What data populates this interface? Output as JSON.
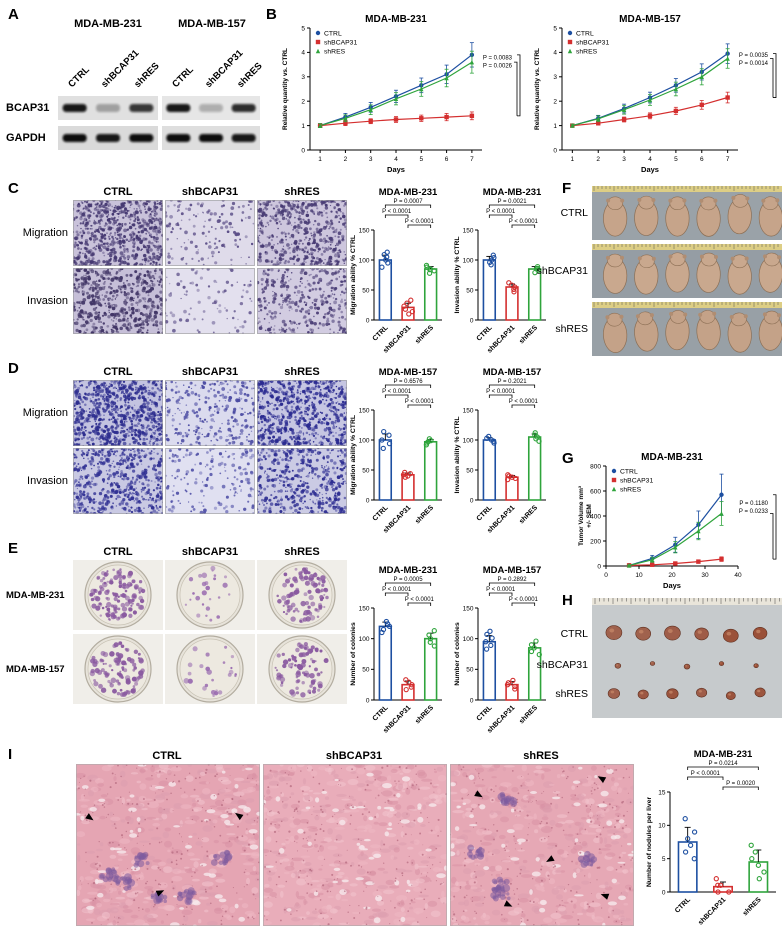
{
  "letters": {
    "A": "A",
    "B": "B",
    "C": "C",
    "D": "D",
    "E": "E",
    "F": "F",
    "G": "G",
    "H": "H",
    "I": "I"
  },
  "colors": {
    "ctrl": "#1d4fa1",
    "shbcap31": "#d42f2f",
    "shres": "#2fa43c"
  },
  "panel_a": {
    "group_headers": [
      "MDA-MB-231",
      "MDA-MB-157"
    ],
    "lanes": [
      "CTRL",
      "shBCAP31",
      "shRES"
    ],
    "band_labels": [
      "BCAP31",
      "GAPDH"
    ]
  },
  "panel_c": {
    "col_headers": [
      "CTRL",
      "shBCAP31",
      "shRES"
    ],
    "row_labels": [
      "Migration",
      "Invasion"
    ]
  },
  "panel_d": {
    "col_headers": [
      "CTRL",
      "shBCAP31",
      "shRES"
    ],
    "row_labels": [
      "Migration",
      "Invasion"
    ]
  },
  "panel_e": {
    "col_headers": [
      "CTRL",
      "shBCAP31",
      "shRES"
    ],
    "row_labels": [
      "MDA-MB-231",
      "MDA-MB-157"
    ]
  },
  "panel_f": {
    "labels": [
      "CTRL",
      "shBCAP31",
      "shRES"
    ]
  },
  "panel_h": {
    "labels": [
      "CTRL",
      "shBCAP31",
      "shRES"
    ]
  },
  "panel_i": {
    "col_headers": [
      "CTRL",
      "shBCAP31",
      "shRES"
    ]
  },
  "images": {
    "a_bcap31_1": {
      "kind": "blot",
      "bg": "#e0e0e0",
      "bands": [
        0.95,
        0.3,
        0.8
      ]
    },
    "a_bcap31_2": {
      "kind": "blot",
      "bg": "#e6e6e6",
      "bands": [
        0.95,
        0.25,
        0.85
      ]
    },
    "a_gapdh_1": {
      "kind": "blot",
      "bg": "#dadada",
      "bands": [
        1,
        0.95,
        1
      ]
    },
    "a_gapdh_2": {
      "kind": "blot",
      "bg": "#dedede",
      "bands": [
        1,
        1,
        0.95
      ]
    },
    "c_mig_ctrl": {
      "kind": "dots",
      "seed": 11,
      "bg": "#c9c2da",
      "dot": "#453871",
      "count": 700,
      "rmin": 0.6,
      "rmax": 1.9
    },
    "c_mig_sh": {
      "kind": "dots",
      "seed": 12,
      "bg": "#dfdbea",
      "dot": "#5c4f88",
      "count": 140,
      "rmin": 0.6,
      "rmax": 1.9
    },
    "c_mig_res": {
      "kind": "dots",
      "seed": 13,
      "bg": "#cdc6dd",
      "dot": "#483b74",
      "count": 520,
      "rmin": 0.6,
      "rmax": 1.9
    },
    "c_inv_ctrl": {
      "kind": "dots",
      "seed": 14,
      "bg": "#c6bfd8",
      "dot": "#413566",
      "count": 520,
      "rmin": 0.6,
      "rmax": 2.0
    },
    "c_inv_sh": {
      "kind": "dots",
      "seed": 15,
      "bg": "#e3e0ee",
      "dot": "#6a5e93",
      "count": 90,
      "rmin": 0.6,
      "rmax": 1.9
    },
    "c_inv_res": {
      "kind": "dots",
      "seed": 16,
      "bg": "#d2cce1",
      "dot": "#4d4078",
      "count": 330,
      "rmin": 0.6,
      "rmax": 1.9
    },
    "d_mig_ctrl": {
      "kind": "dots",
      "seed": 21,
      "bg": "#c3c3e0",
      "dot": "#2c2c8e",
      "count": 750,
      "rmin": 0.6,
      "rmax": 1.9
    },
    "d_mig_sh": {
      "kind": "dots",
      "seed": 22,
      "bg": "#dbdbee",
      "dot": "#4a4aa2",
      "count": 280,
      "rmin": 0.6,
      "rmax": 1.9
    },
    "d_mig_res": {
      "kind": "dots",
      "seed": 23,
      "bg": "#c6c6e2",
      "dot": "#2a2a90",
      "count": 680,
      "rmin": 0.6,
      "rmax": 1.9
    },
    "d_inv_ctrl": {
      "kind": "dots",
      "seed": 24,
      "bg": "#c9c9e3",
      "dot": "#323294",
      "count": 540,
      "rmin": 0.6,
      "rmax": 1.9
    },
    "d_inv_sh": {
      "kind": "dots",
      "seed": 25,
      "bg": "#e0e0f1",
      "dot": "#5656aa",
      "count": 160,
      "rmin": 0.6,
      "rmax": 1.9
    },
    "d_inv_res": {
      "kind": "dots",
      "seed": 26,
      "bg": "#cbcbe4",
      "dot": "#2e2e92",
      "count": 430,
      "rmin": 0.6,
      "rmax": 1.9
    },
    "e_231_ctrl": {
      "kind": "plate",
      "seed": 31,
      "count": 130,
      "dot": "#8a5aa0"
    },
    "e_231_sh": {
      "kind": "plate",
      "seed": 32,
      "count": 26,
      "dot": "#9a6cb0"
    },
    "e_231_res": {
      "kind": "plate",
      "seed": 33,
      "count": 100,
      "dot": "#8a5aa0"
    },
    "e_157_ctrl": {
      "kind": "plate",
      "seed": 34,
      "count": 100,
      "dot": "#8a5aa0"
    },
    "e_157_sh": {
      "kind": "plate",
      "seed": 35,
      "count": 25,
      "dot": "#9a6cb0"
    },
    "e_157_res": {
      "kind": "plate",
      "seed": 36,
      "count": 85,
      "dot": "#8a5aa0"
    },
    "f_ctrl": {
      "kind": "mice",
      "seed": 41,
      "count": 6,
      "bg": "#9aa2a8",
      "body": "#c6a48a"
    },
    "f_sh": {
      "kind": "mice",
      "seed": 42,
      "count": 6,
      "bg": "#959da4",
      "body": "#c9a88e"
    },
    "f_res": {
      "kind": "mice",
      "seed": 43,
      "count": 6,
      "bg": "#98a0a6",
      "body": "#c4a288"
    },
    "h_tumors": {
      "kind": "tumors",
      "seed": 51,
      "color": "#9a5038",
      "rows": [
        {
          "y": 0.3,
          "sizes": [
            7,
            6.5,
            7,
            6,
            6.5,
            6
          ]
        },
        {
          "y": 0.56,
          "sizes": [
            2.5,
            2,
            2.5,
            2,
            2
          ]
        },
        {
          "y": 0.8,
          "sizes": [
            5,
            4.5,
            5,
            4.5,
            4,
            4.5
          ]
        }
      ]
    },
    "i_ctrl": {
      "kind": "histo",
      "seed": 61,
      "bg": "#e5a5b3",
      "patches": 6,
      "arrows": [
        [
          0.06,
          0.32,
          35
        ],
        [
          0.44,
          0.8,
          -25
        ],
        [
          0.9,
          0.33,
          215
        ]
      ]
    },
    "i_sh": {
      "kind": "histo",
      "seed": 62,
      "bg": "#e9adba",
      "patches": 0,
      "arrows": []
    },
    "i_res": {
      "kind": "histo",
      "seed": 63,
      "bg": "#e6a8b5",
      "patches": 5,
      "arrows": [
        [
          0.14,
          0.18,
          30
        ],
        [
          0.84,
          0.1,
          210
        ],
        [
          0.56,
          0.58,
          150
        ],
        [
          0.3,
          0.86,
          25
        ],
        [
          0.86,
          0.82,
          200
        ]
      ]
    }
  },
  "chart_data": [
    {
      "id": "b231",
      "type": "line",
      "title": "MDA-MB-231",
      "xlabel": "Days",
      "ylabel": "Relative quantity vs. CTRL",
      "x": [
        1,
        2,
        3,
        4,
        5,
        6,
        7
      ],
      "xlim": [
        0.6,
        7.4
      ],
      "xticks": [
        1,
        2,
        3,
        4,
        5,
        6,
        7
      ],
      "ylim": [
        0,
        5
      ],
      "yticks": [
        0,
        1,
        2,
        3,
        4,
        5
      ],
      "series": [
        {
          "name": "CTRL",
          "color": "ctrl",
          "marker": "circle",
          "values": [
            1.0,
            1.35,
            1.75,
            2.2,
            2.65,
            3.1,
            3.9
          ],
          "err": [
            0.08,
            0.15,
            0.2,
            0.25,
            0.3,
            0.38,
            0.5
          ]
        },
        {
          "name": "shBCAP31",
          "color": "shbcap31",
          "marker": "square",
          "values": [
            1.0,
            1.1,
            1.18,
            1.25,
            1.3,
            1.35,
            1.4
          ],
          "err": [
            0.08,
            0.1,
            0.1,
            0.12,
            0.13,
            0.15,
            0.16
          ]
        },
        {
          "name": "shRES",
          "color": "shres",
          "marker": "triangle",
          "values": [
            1.0,
            1.3,
            1.65,
            2.1,
            2.5,
            2.95,
            3.6
          ],
          "err": [
            0.08,
            0.14,
            0.2,
            0.25,
            0.3,
            0.36,
            0.45
          ]
        }
      ],
      "p_values": [
        "P = 0.0083",
        "P = 0.0026"
      ]
    },
    {
      "id": "b157",
      "type": "line",
      "title": "MDA-MB-157",
      "xlabel": "Days",
      "ylabel": "Relative quantity vs. CTRL",
      "x": [
        1,
        2,
        3,
        4,
        5,
        6,
        7
      ],
      "xlim": [
        0.6,
        7.4
      ],
      "xticks": [
        1,
        2,
        3,
        4,
        5,
        6,
        7
      ],
      "ylim": [
        0,
        5
      ],
      "yticks": [
        0,
        1,
        2,
        3,
        4,
        5
      ],
      "series": [
        {
          "name": "CTRL",
          "color": "ctrl",
          "marker": "circle",
          "values": [
            1.0,
            1.3,
            1.7,
            2.15,
            2.65,
            3.2,
            3.95
          ],
          "err": [
            0.06,
            0.12,
            0.18,
            0.22,
            0.28,
            0.33,
            0.4
          ]
        },
        {
          "name": "shBCAP31",
          "color": "shbcap31",
          "marker": "square",
          "values": [
            1.0,
            1.1,
            1.25,
            1.4,
            1.6,
            1.85,
            2.15
          ],
          "err": [
            0.06,
            0.08,
            0.1,
            0.12,
            0.15,
            0.18,
            0.22
          ]
        },
        {
          "name": "shRES",
          "color": "shres",
          "marker": "triangle",
          "values": [
            1.0,
            1.28,
            1.65,
            2.05,
            2.5,
            3.0,
            3.75
          ],
          "err": [
            0.06,
            0.12,
            0.18,
            0.22,
            0.28,
            0.33,
            0.4
          ]
        }
      ],
      "p_values": [
        "P = 0.0035",
        "P = 0.0014"
      ]
    },
    {
      "id": "cmig",
      "type": "bar",
      "seed": 101,
      "title": "MDA-MB-231",
      "ylabel": "Migration ability % CTRL",
      "ylim": [
        0,
        150
      ],
      "yticks": [
        0,
        50,
        100,
        150
      ],
      "categories": [
        "CTRL",
        "shBCAP31",
        "shRES"
      ],
      "colors": [
        "ctrl",
        "shbcap31",
        "shres"
      ],
      "values": [
        100,
        21,
        85
      ],
      "errors": [
        8,
        7,
        4
      ],
      "points": [
        [
          88,
          95,
          100,
          105,
          109,
          113
        ],
        [
          10,
          14,
          18,
          23,
          28,
          33
        ],
        [
          78,
          82,
          85,
          88,
          91,
          84
        ]
      ],
      "p_top": "P = 0.0007",
      "p_left": "P < 0.0001",
      "p_right": "P < 0.0001"
    },
    {
      "id": "cinv",
      "type": "bar",
      "seed": 102,
      "title": "MDA-MB-231",
      "ylabel": "Invasion ability % CTRL",
      "ylim": [
        0,
        150
      ],
      "yticks": [
        0,
        50,
        100,
        150
      ],
      "categories": [
        "CTRL",
        "shBCAP31",
        "shRES"
      ],
      "colors": [
        "ctrl",
        "shbcap31",
        "shres"
      ],
      "values": [
        100,
        55,
        85
      ],
      "errors": [
        6,
        5,
        4
      ],
      "points": [
        [
          92,
          96,
          100,
          104,
          108
        ],
        [
          47,
          51,
          55,
          58,
          62
        ],
        [
          79,
          83,
          86,
          89,
          85
        ]
      ],
      "p_top": "P = 0.0021",
      "p_left": "P < 0.0001",
      "p_right": "P < 0.0001"
    },
    {
      "id": "dmig",
      "type": "bar",
      "seed": 103,
      "title": "MDA-MB-157",
      "ylabel": "Migration ability % CTRL",
      "ylim": [
        0,
        150
      ],
      "yticks": [
        0,
        50,
        100,
        150
      ],
      "categories": [
        "CTRL",
        "shBCAP31",
        "shRES"
      ],
      "colors": [
        "ctrl",
        "shbcap31",
        "shres"
      ],
      "values": [
        100,
        42,
        97
      ],
      "errors": [
        10,
        3,
        4
      ],
      "points": [
        [
          86,
          94,
          100,
          108,
          114
        ],
        [
          38,
          40,
          42,
          44,
          46
        ],
        [
          92,
          95,
          97,
          99,
          102
        ]
      ],
      "p_top": "P = 0.6576",
      "p_left": "P < 0.0001",
      "p_right": "P < 0.0001"
    },
    {
      "id": "dinv",
      "type": "bar",
      "seed": 104,
      "title": "MDA-MB-157",
      "ylabel": "Invasion ability % CTRL",
      "ylim": [
        0,
        150
      ],
      "yticks": [
        0,
        50,
        100,
        150
      ],
      "categories": [
        "CTRL",
        "shBCAP31",
        "shRES"
      ],
      "colors": [
        "ctrl",
        "shbcap31",
        "shres"
      ],
      "values": [
        100,
        38,
        105
      ],
      "errors": [
        4,
        3,
        5
      ],
      "points": [
        [
          95,
          98,
          100,
          103,
          106
        ],
        [
          34,
          36,
          38,
          40,
          42
        ],
        [
          98,
          102,
          105,
          108,
          112
        ]
      ],
      "p_top": "P = 0.2021",
      "p_left": "P < 0.0001",
      "p_right": "P < 0.0001"
    },
    {
      "id": "e231",
      "type": "bar",
      "seed": 105,
      "title": "MDA-MB-231",
      "ylabel": "Number of colonies",
      "ylim": [
        0,
        150
      ],
      "yticks": [
        0,
        50,
        100,
        150
      ],
      "categories": [
        "CTRL",
        "shBCAP31",
        "shRES"
      ],
      "colors": [
        "ctrl",
        "shbcap31",
        "shres"
      ],
      "values": [
        120,
        25,
        100
      ],
      "errors": [
        7,
        6,
        9
      ],
      "points": [
        [
          110,
          115,
          120,
          124,
          128
        ],
        [
          17,
          21,
          25,
          29,
          33
        ],
        [
          88,
          94,
          100,
          106,
          113
        ]
      ],
      "p_top": "P = 0.0005",
      "p_left": "P < 0.0001",
      "p_right": "P < 0.0001"
    },
    {
      "id": "e157",
      "type": "bar",
      "seed": 106,
      "title": "MDA-MB-157",
      "ylabel": "Number of colonies",
      "ylim": [
        0,
        150
      ],
      "yticks": [
        0,
        50,
        100,
        150
      ],
      "categories": [
        "CTRL",
        "shBCAP31",
        "shRES"
      ],
      "colors": [
        "ctrl",
        "shbcap31",
        "shres"
      ],
      "values": [
        95,
        25,
        85
      ],
      "errors": [
        10,
        5,
        8
      ],
      "points": [
        [
          83,
          89,
          95,
          101,
          107,
          112
        ],
        [
          18,
          22,
          25,
          28,
          32
        ],
        [
          74,
          79,
          85,
          90,
          96
        ]
      ],
      "p_top": "P = 0.2892",
      "p_left": "P < 0.0001",
      "p_right": "P < 0.0001"
    },
    {
      "id": "gvol",
      "type": "line",
      "title": "MDA-MB-231",
      "xlabel": "Days",
      "ylabel": [
        "Tumor Volume mm³",
        "+/- SEM"
      ],
      "x": [
        7,
        14,
        21,
        28,
        35
      ],
      "xlim": [
        0,
        40
      ],
      "xticks": [
        0,
        10,
        20,
        30,
        40
      ],
      "ylim": [
        0,
        800
      ],
      "yticks": [
        0,
        200,
        400,
        600,
        800
      ],
      "series": [
        {
          "name": "CTRL",
          "color": "ctrl",
          "marker": "circle",
          "values": [
            5,
            60,
            170,
            330,
            570
          ],
          "err": [
            4,
            25,
            60,
            110,
            165
          ]
        },
        {
          "name": "shBCAP31",
          "color": "shbcap31",
          "marker": "square",
          "values": [
            5,
            10,
            20,
            35,
            55
          ],
          "err": [
            3,
            5,
            8,
            12,
            18
          ]
        },
        {
          "name": "shRES",
          "color": "shres",
          "marker": "triangle",
          "values": [
            5,
            50,
            150,
            280,
            420
          ],
          "err": [
            4,
            20,
            45,
            70,
            95
          ]
        }
      ],
      "p_values": [
        "P = 0.1180",
        "P = 0.0233"
      ]
    },
    {
      "id": "inod",
      "type": "bar",
      "seed": 107,
      "title": "MDA-MB-231",
      "ylabel": "Number of nodules per liver",
      "ylim": [
        0,
        15
      ],
      "yticks": [
        0,
        5,
        10,
        15
      ],
      "categories": [
        "CTRL",
        "shBCAP31",
        "shRES"
      ],
      "colors": [
        "ctrl",
        "shbcap31",
        "shres"
      ],
      "values": [
        7.5,
        0.8,
        4.5
      ],
      "errors": [
        2.2,
        0.7,
        1.8
      ],
      "points": [
        [
          5,
          6,
          7,
          8,
          9,
          11
        ],
        [
          0,
          0,
          1,
          1,
          2
        ],
        [
          2,
          3,
          4,
          5,
          6,
          7
        ]
      ],
      "p_top": "P = 0.0214",
      "p_left": "P < 0.0001",
      "p_right": "P = 0.0020"
    }
  ]
}
